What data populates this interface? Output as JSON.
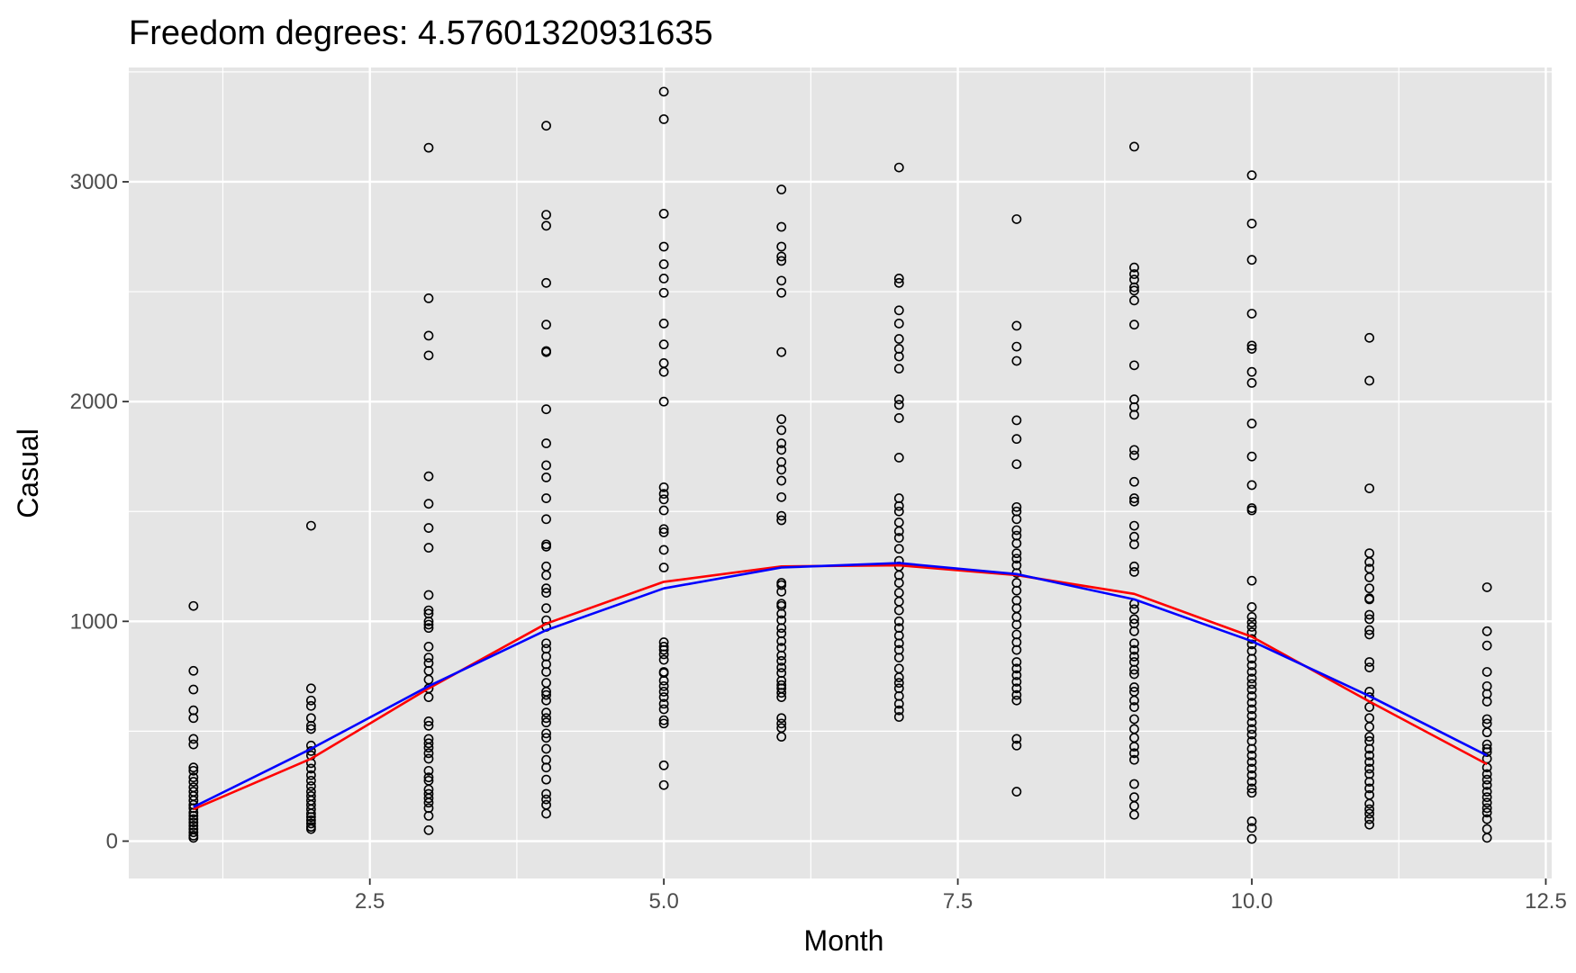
{
  "chart_data": {
    "type": "scatter",
    "title": "Freedom degrees: 4.57601320931635",
    "xlabel": "Month",
    "ylabel": "Casual",
    "xlim": [
      0.45,
      12.55
    ],
    "ylim": [
      -170,
      3520
    ],
    "x_ticks": [
      2.5,
      5.0,
      7.5,
      10.0,
      12.5
    ],
    "x_tick_labels": [
      "2.5",
      "5.0",
      "7.5",
      "10.0",
      "12.5"
    ],
    "y_ticks": [
      0,
      1000,
      2000,
      3000
    ],
    "y_tick_labels": [
      "0",
      "1000",
      "2000",
      "3000"
    ],
    "grid": true,
    "panel_background": "#e5e5e5",
    "grid_color": "#ffffff",
    "point_color": "#000000",
    "legend": "none",
    "points": [
      {
        "month": 1,
        "values": [
          1070,
          775,
          690,
          595,
          560,
          465,
          440,
          335,
          320,
          290,
          270,
          245,
          225,
          205,
          185,
          165,
          150,
          130,
          115,
          100,
          85,
          70,
          55,
          40,
          25,
          15
        ]
      },
      {
        "month": 2,
        "values": [
          1435,
          695,
          640,
          615,
          560,
          525,
          510,
          435,
          410,
          390,
          355,
          330,
          300,
          275,
          250,
          225,
          205,
          185,
          165,
          145,
          125,
          110,
          95,
          80,
          65,
          55
        ]
      },
      {
        "month": 3,
        "values": [
          3155,
          2470,
          2300,
          2210,
          1660,
          1535,
          1425,
          1335,
          1120,
          1050,
          1035,
          1000,
          985,
          970,
          885,
          835,
          810,
          775,
          735,
          695,
          655,
          545,
          525,
          465,
          445,
          425,
          400,
          375,
          320,
          290,
          275,
          235,
          215,
          195,
          175,
          150,
          115,
          50
        ]
      },
      {
        "month": 4,
        "values": [
          3255,
          2850,
          2800,
          2540,
          2350,
          2230,
          2225,
          1965,
          1810,
          1710,
          1655,
          1560,
          1465,
          1350,
          1340,
          1250,
          1210,
          1150,
          1130,
          1060,
          1005,
          975,
          900,
          875,
          840,
          805,
          770,
          720,
          680,
          665,
          640,
          585,
          560,
          540,
          490,
          470,
          420,
          370,
          335,
          280,
          215,
          190,
          165,
          125
        ]
      },
      {
        "month": 5,
        "values": [
          3410,
          3285,
          2855,
          2705,
          2625,
          2560,
          2495,
          2355,
          2260,
          2175,
          2135,
          2000,
          1610,
          1580,
          1555,
          1505,
          1420,
          1405,
          1325,
          1245,
          905,
          885,
          870,
          850,
          825,
          770,
          765,
          730,
          705,
          680,
          655,
          625,
          600,
          550,
          535,
          345,
          255
        ]
      },
      {
        "month": 6,
        "values": [
          2965,
          2795,
          2705,
          2660,
          2640,
          2550,
          2495,
          2225,
          1920,
          1870,
          1810,
          1780,
          1725,
          1690,
          1640,
          1565,
          1480,
          1460,
          1175,
          1165,
          1135,
          1080,
          1070,
          1035,
          1005,
          970,
          945,
          910,
          880,
          845,
          820,
          790,
          765,
          730,
          710,
          695,
          675,
          655,
          560,
          535,
          515,
          475
        ]
      },
      {
        "month": 7,
        "values": [
          3065,
          2560,
          2540,
          2415,
          2355,
          2285,
          2240,
          2205,
          2150,
          2010,
          1985,
          1925,
          1745,
          1560,
          1525,
          1500,
          1450,
          1410,
          1380,
          1330,
          1275,
          1250,
          1210,
          1175,
          1130,
          1090,
          1050,
          1000,
          970,
          935,
          900,
          870,
          835,
          785,
          745,
          720,
          695,
          660,
          625,
          595,
          565
        ]
      },
      {
        "month": 8,
        "values": [
          2830,
          2345,
          2250,
          2185,
          1915,
          1830,
          1715,
          1520,
          1500,
          1465,
          1415,
          1390,
          1355,
          1310,
          1285,
          1255,
          1220,
          1175,
          1140,
          1095,
          1060,
          1020,
          985,
          940,
          905,
          870,
          815,
          785,
          755,
          725,
          695,
          665,
          640,
          465,
          435,
          225
        ]
      },
      {
        "month": 9,
        "values": [
          3160,
          2610,
          2580,
          2555,
          2520,
          2505,
          2460,
          2350,
          2165,
          2010,
          1975,
          1940,
          1780,
          1755,
          1635,
          1560,
          1545,
          1435,
          1385,
          1350,
          1250,
          1225,
          1080,
          1055,
          1010,
          990,
          955,
          900,
          870,
          840,
          815,
          780,
          760,
          700,
          680,
          640,
          610,
          555,
          510,
          470,
          430,
          400,
          370,
          260,
          200,
          160,
          120
        ]
      },
      {
        "month": 10,
        "values": [
          3030,
          2810,
          2645,
          2400,
          2255,
          2240,
          2135,
          2085,
          1900,
          1750,
          1620,
          1515,
          1505,
          1185,
          1065,
          1020,
          995,
          975,
          950,
          920,
          895,
          865,
          830,
          800,
          770,
          740,
          715,
          690,
          660,
          630,
          600,
          570,
          540,
          510,
          485,
          455,
          420,
          390,
          360,
          330,
          300,
          270,
          240,
          220,
          90,
          60,
          10
        ]
      },
      {
        "month": 11,
        "values": [
          2290,
          2095,
          1605,
          1310,
          1270,
          1240,
          1200,
          1150,
          1105,
          1100,
          1030,
          1010,
          960,
          940,
          815,
          790,
          680,
          655,
          610,
          560,
          520,
          475,
          455,
          420,
          390,
          360,
          330,
          305,
          270,
          240,
          210,
          170,
          145,
          125,
          100,
          75
        ]
      },
      {
        "month": 12,
        "values": [
          1155,
          955,
          890,
          770,
          705,
          670,
          635,
          555,
          535,
          495,
          440,
          420,
          405,
          375,
          335,
          305,
          280,
          255,
          225,
          200,
          175,
          150,
          130,
          100,
          55,
          15
        ]
      }
    ],
    "series": [
      {
        "color": "#ff0000",
        "x": [
          1,
          2,
          3,
          4,
          5,
          6,
          7,
          8,
          9,
          10,
          11,
          12
        ],
        "values": [
          145,
          375,
          695,
          990,
          1180,
          1250,
          1255,
          1210,
          1125,
          930,
          635,
          350
        ]
      },
      {
        "color": "#0000ff",
        "x": [
          1,
          2,
          3,
          4,
          5,
          6,
          7,
          8,
          9,
          10,
          11,
          12
        ],
        "values": [
          155,
          420,
          705,
          960,
          1150,
          1245,
          1265,
          1215,
          1100,
          910,
          660,
          390
        ]
      }
    ]
  }
}
